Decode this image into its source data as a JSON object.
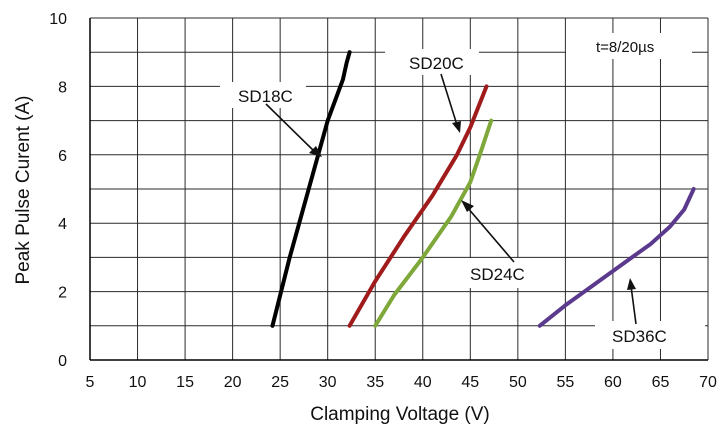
{
  "chart_data": {
    "type": "line",
    "xlabel": "Clamping Voltage (V)",
    "ylabel": "Peak  Pulse Curent (A)",
    "xlim": [
      5,
      70
    ],
    "ylim": [
      0,
      10
    ],
    "xticks": [
      "5",
      "10",
      "15",
      "20",
      "25",
      "30",
      "35",
      "40",
      "45",
      "50",
      "55",
      "60",
      "65",
      "70"
    ],
    "yticks": [
      "0",
      "2",
      "4",
      "6",
      "8",
      "10"
    ],
    "grid": true,
    "annotation": "t=8/20µs",
    "series": [
      {
        "name": "SD18C",
        "color": "#000000",
        "x": [
          24.2,
          26.0,
          28.0,
          30.0,
          31.6,
          32.0,
          32.3
        ],
        "y": [
          1,
          3,
          5,
          7,
          8.2,
          8.7,
          9
        ]
      },
      {
        "name": "SD20C",
        "color": "#a01b1b",
        "x": [
          32.3,
          35.0,
          38.0,
          41.0,
          43.6,
          45.0,
          46.7
        ],
        "y": [
          1,
          2.3,
          3.6,
          4.8,
          6.0,
          6.8,
          8
        ]
      },
      {
        "name": "SD24C",
        "color": "#7fa83a",
        "x": [
          35.0,
          37.0,
          40.0,
          43.0,
          45.0,
          46.0,
          47.2
        ],
        "y": [
          1,
          1.9,
          3.0,
          4.2,
          5.2,
          6.0,
          7
        ]
      },
      {
        "name": "SD36C",
        "color": "#5b3a8e",
        "x": [
          52.3,
          55.0,
          58.0,
          61.0,
          64.0,
          66.0,
          67.5,
          68.5
        ],
        "y": [
          1,
          1.6,
          2.2,
          2.8,
          3.4,
          3.9,
          4.4,
          5
        ]
      }
    ],
    "labels": [
      {
        "name": "SD18C",
        "point": [
          29.4,
          6.0
        ]
      },
      {
        "name": "SD20C",
        "point": [
          43.8,
          6.6
        ]
      },
      {
        "name": "SD24C",
        "point": [
          44.0,
          4.7
        ]
      },
      {
        "name": "SD36C",
        "point": [
          61.8,
          2.9
        ]
      }
    ]
  }
}
